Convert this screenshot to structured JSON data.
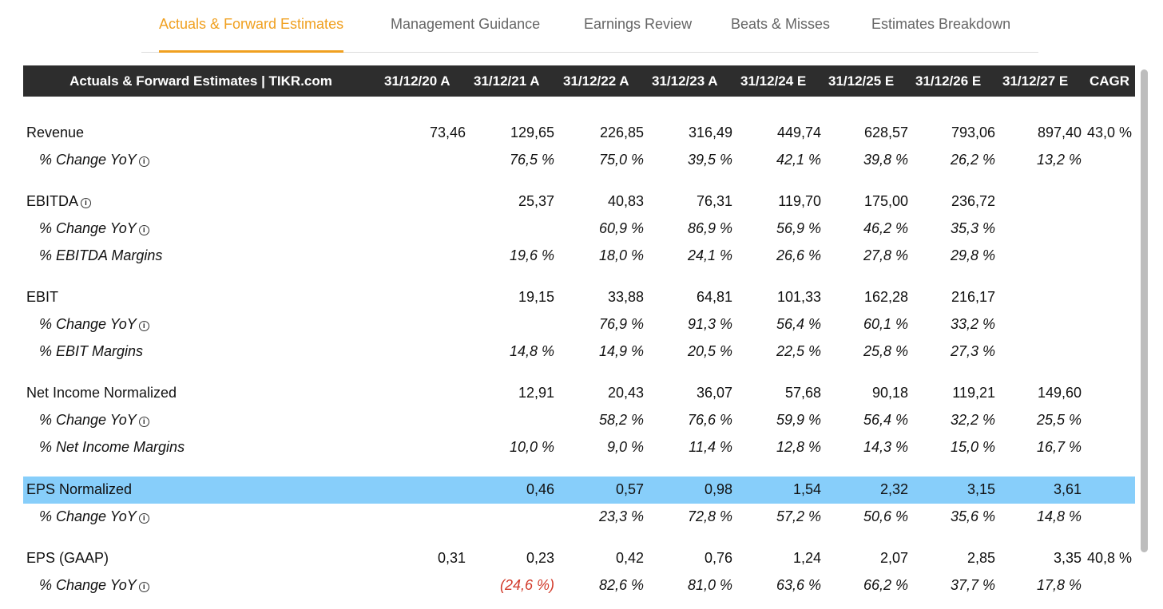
{
  "tabs": [
    {
      "label": "Actuals & Forward Estimates",
      "active": true
    },
    {
      "label": "Management Guidance",
      "active": false
    },
    {
      "label": "Earnings Review",
      "active": false
    },
    {
      "label": "Beats & Misses",
      "active": false
    },
    {
      "label": "Estimates Breakdown",
      "active": false
    }
  ],
  "table": {
    "title": "Actuals & Forward Estimates | TIKR.com",
    "columns": [
      "31/12/20 A",
      "31/12/21 A",
      "31/12/22 A",
      "31/12/23 A",
      "31/12/24 E",
      "31/12/25 E",
      "31/12/26 E",
      "31/12/27 E",
      "CAGR"
    ],
    "info_icon": "i",
    "rows": [
      {
        "label": "Revenue",
        "values": [
          "73,46",
          "129,65",
          "226,85",
          "316,49",
          "449,74",
          "628,57",
          "793,06",
          "897,40",
          "43,0 %"
        ]
      },
      {
        "label": "% Change YoY",
        "values": [
          "",
          "76,5 %",
          "75,0 %",
          "39,5 %",
          "42,1 %",
          "39,8 %",
          "26,2 %",
          "13,2 %",
          ""
        ]
      },
      {
        "label": "EBITDA",
        "values": [
          "",
          "25,37",
          "40,83",
          "76,31",
          "119,70",
          "175,00",
          "236,72",
          "",
          ""
        ]
      },
      {
        "label": "% Change YoY",
        "values": [
          "",
          "",
          "60,9 %",
          "86,9 %",
          "56,9 %",
          "46,2 %",
          "35,3 %",
          "",
          ""
        ]
      },
      {
        "label": "% EBITDA Margins",
        "values": [
          "",
          "19,6 %",
          "18,0 %",
          "24,1 %",
          "26,6 %",
          "27,8 %",
          "29,8 %",
          "",
          ""
        ]
      },
      {
        "label": "EBIT",
        "values": [
          "",
          "19,15",
          "33,88",
          "64,81",
          "101,33",
          "162,28",
          "216,17",
          "",
          ""
        ]
      },
      {
        "label": "% Change YoY",
        "values": [
          "",
          "",
          "76,9 %",
          "91,3 %",
          "56,4 %",
          "60,1 %",
          "33,2 %",
          "",
          ""
        ]
      },
      {
        "label": "% EBIT Margins",
        "values": [
          "",
          "14,8 %",
          "14,9 %",
          "20,5 %",
          "22,5 %",
          "25,8 %",
          "27,3 %",
          "",
          ""
        ]
      },
      {
        "label": "Net Income Normalized",
        "values": [
          "",
          "12,91",
          "20,43",
          "36,07",
          "57,68",
          "90,18",
          "119,21",
          "149,60",
          ""
        ]
      },
      {
        "label": "% Change YoY",
        "values": [
          "",
          "",
          "58,2 %",
          "76,6 %",
          "59,9 %",
          "56,4 %",
          "32,2 %",
          "25,5 %",
          ""
        ]
      },
      {
        "label": "% Net Income Margins",
        "values": [
          "",
          "10,0 %",
          "9,0 %",
          "11,4 %",
          "12,8 %",
          "14,3 %",
          "15,0 %",
          "16,7 %",
          ""
        ]
      },
      {
        "label": "EPS Normalized",
        "values": [
          "",
          "0,46",
          "0,57",
          "0,98",
          "1,54",
          "2,32",
          "3,15",
          "3,61",
          ""
        ]
      },
      {
        "label": "% Change YoY",
        "values": [
          "",
          "",
          "23,3 %",
          "72,8 %",
          "57,2 %",
          "50,6 %",
          "35,6 %",
          "14,8 %",
          ""
        ]
      },
      {
        "label": "EPS (GAAP)",
        "values": [
          "0,31",
          "0,23",
          "0,42",
          "0,76",
          "1,24",
          "2,07",
          "2,85",
          "3,35",
          "40,8 %"
        ]
      },
      {
        "label": "% Change YoY",
        "values": [
          "",
          "(24,6 %)",
          "82,6 %",
          "81,0 %",
          "63,6 %",
          "66,2 %",
          "37,7 %",
          "17,8 %",
          ""
        ]
      }
    ]
  },
  "colors": {
    "accent": "#f0a020",
    "header_bg": "#2d2d2d",
    "highlight_row": "#87cefa",
    "negative": "#d23a2a"
  }
}
